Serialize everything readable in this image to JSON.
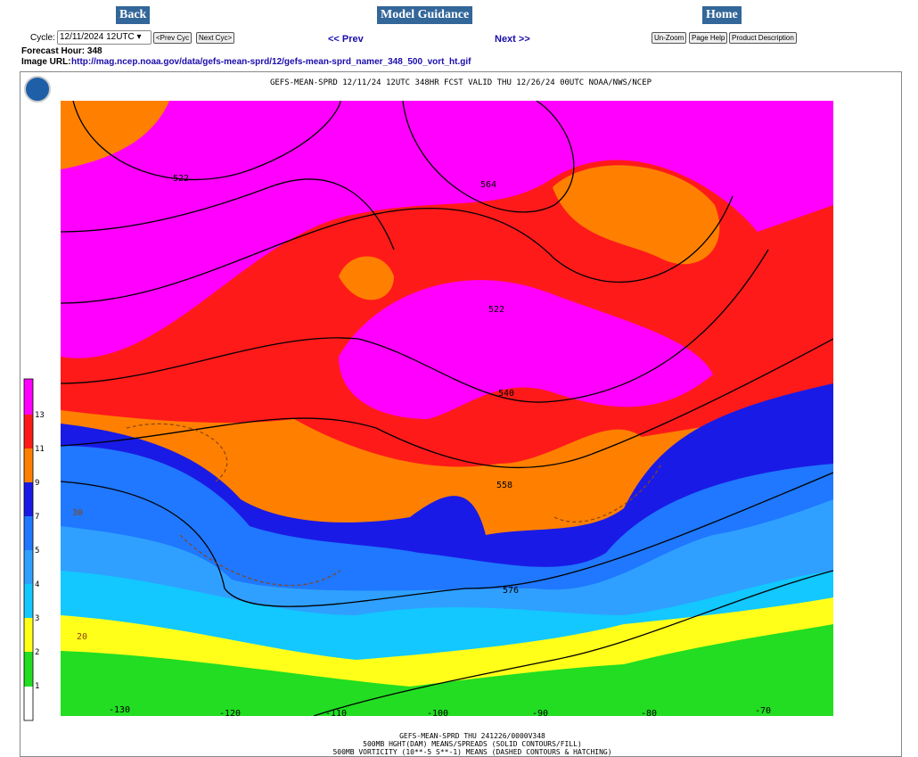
{
  "nav": {
    "back": "Back",
    "model_guidance": "Model Guidance",
    "home": "Home"
  },
  "controls": {
    "cycle_label": "Cycle:",
    "cycle_value": "12/11/2024 12UTC",
    "prev_cyc": "<Prev Cyc",
    "next_cyc": "Next Cyc>",
    "prev": "<< Prev",
    "next": "Next >>",
    "unzoom": "Un-Zoom",
    "page_help": "Page Help",
    "product_description": "Product Description"
  },
  "info": {
    "forecast_hour": "Forecast Hour: 348",
    "image_url_label": "Image URL:",
    "image_url": "http://mag.ncep.noaa.gov/data/gefs-mean-sprd/12/gefs-mean-sprd_namer_348_500_vort_ht.gif"
  },
  "figure": {
    "header": "GEFS-MEAN-SPRD 12/11/24 12UTC 348HR FCST VALID THU 12/26/24 00UTC NOAA/NWS/NCEP",
    "colorbar_labels": [
      13,
      11,
      9,
      7,
      5,
      4,
      3,
      2,
      1
    ],
    "contour_labels": [
      522,
      564,
      522,
      540,
      558,
      576,
      30,
      20
    ],
    "longitude_labels": [
      -130,
      -120,
      -110,
      -100,
      -90,
      -80,
      -70
    ],
    "footer": [
      "GEFS-MEAN-SPRD THU 241226/0000V348",
      "500MB HGHT(DAM) MEANS/SPREADS (SOLID CONTOURS/FILL)",
      "500MB VORTICITY (10**-5 S**-1) MEANS (DASHED CONTOURS & HATCHING)"
    ]
  }
}
